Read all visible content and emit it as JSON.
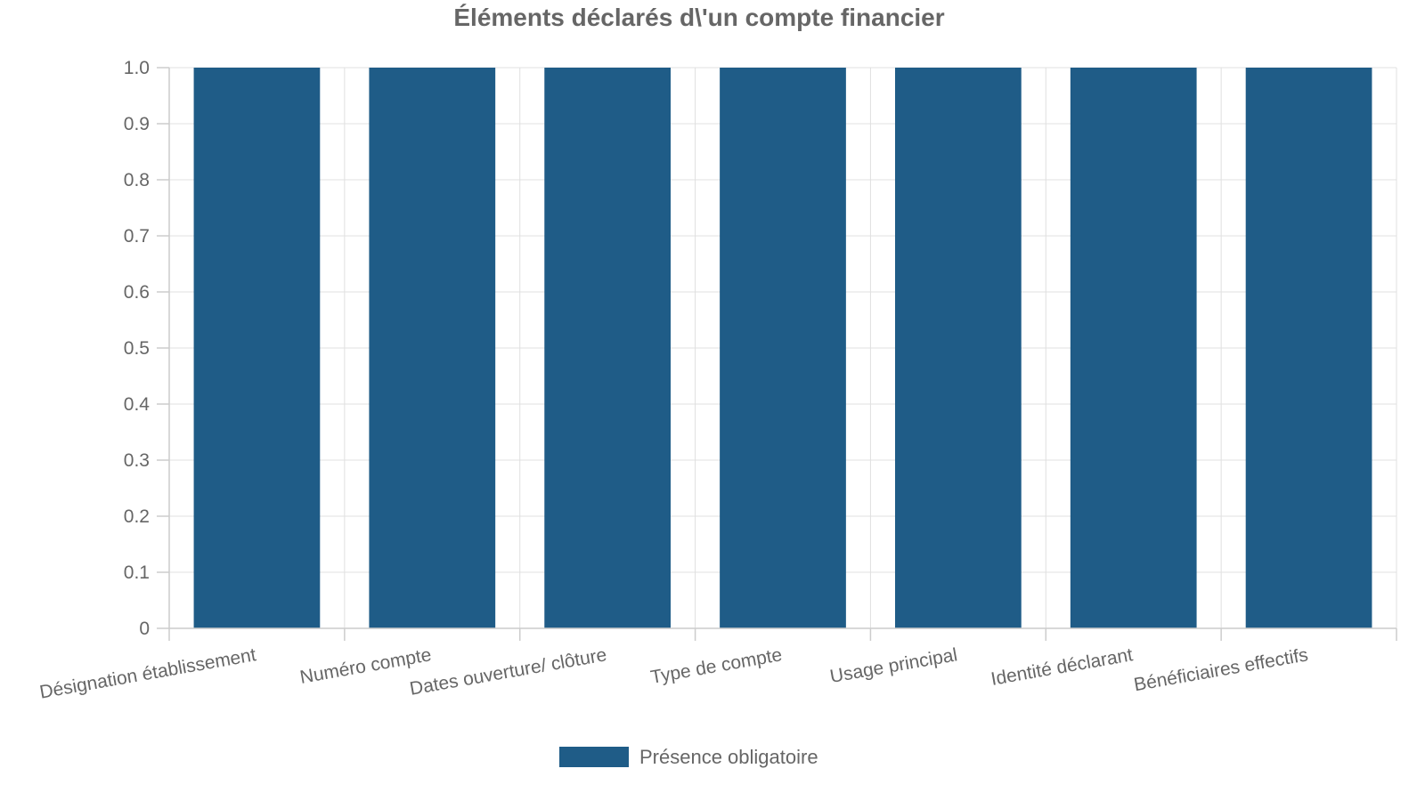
{
  "chart_data": {
    "type": "bar",
    "title": "Éléments déclarés d\\'un compte financier",
    "categories": [
      "Désignation établissement",
      "Numéro compte",
      "Dates ouverture/ clôture",
      "Type de compte",
      "Usage principal",
      "Identité déclarant",
      "Bénéficiaires effectifs"
    ],
    "series": [
      {
        "name": "Présence obligatoire",
        "values": [
          1,
          1,
          1,
          1,
          1,
          1,
          1
        ],
        "color": "#1f5c87"
      }
    ],
    "xlabel": "",
    "ylabel": "",
    "ylim": [
      0,
      1.0
    ],
    "yticks": [
      "0",
      "0.1",
      "0.2",
      "0.3",
      "0.4",
      "0.5",
      "0.6",
      "0.7",
      "0.8",
      "0.9",
      "1.0"
    ],
    "grid": true,
    "legend_position": "bottom-center"
  }
}
